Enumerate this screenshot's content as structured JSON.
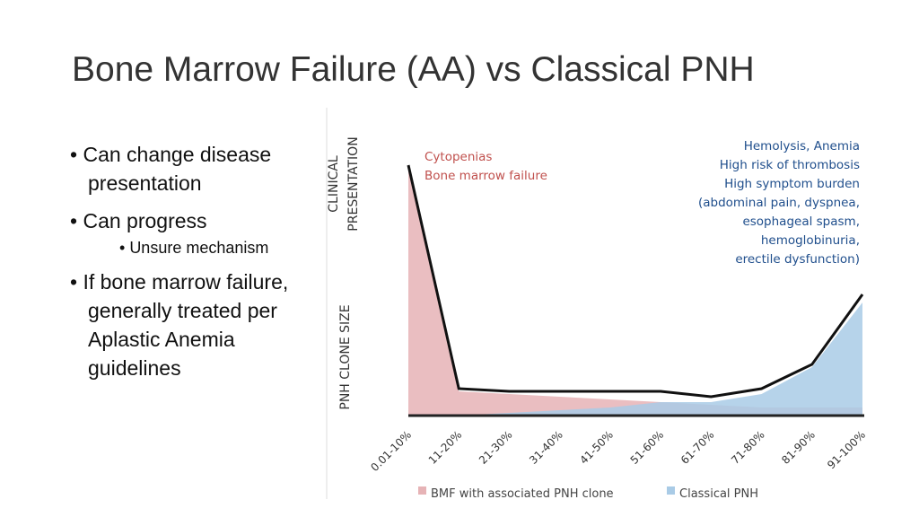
{
  "title": "Bone Marrow Failure (AA) vs Classical PNH",
  "bullets": [
    {
      "text": "Can change disease presentation",
      "level": 1
    },
    {
      "text": "Can progress",
      "level": 1
    },
    {
      "text": "Unsure mechanism",
      "level": 2
    },
    {
      "text": "If bone marrow failure, generally treated per Aplastic Anemia guidelines",
      "level": 1
    }
  ],
  "chart_data": {
    "type": "area",
    "y_label_top": [
      "CLINICAL",
      "PRESENTATION"
    ],
    "y_label_bottom": "PNH CLONE SIZE",
    "categories": [
      "0.01-10%",
      "11-20%",
      "21-30%",
      "31-40%",
      "41-50%",
      "51-60%",
      "61-70%",
      "71-80%",
      "81-90%",
      "91-100%"
    ],
    "ylim": [
      0,
      100
    ],
    "series": [
      {
        "name": "BMF with associated PNH clone",
        "color": "#e6b3b6",
        "values": [
          93,
          9,
          8,
          7,
          6,
          5,
          4,
          3,
          3,
          3
        ]
      },
      {
        "name": "Classical PNH",
        "color": "#a9cbe6",
        "values": [
          0,
          0,
          1,
          2,
          3,
          5,
          5,
          8,
          18,
          42
        ]
      }
    ],
    "outline": {
      "color": "#111111",
      "values": [
        93,
        10,
        9,
        9,
        9,
        9,
        7,
        10,
        19,
        45
      ]
    },
    "annotations": [
      {
        "color": "#c0504d",
        "lines": [
          "Cytopenias",
          "Bone marrow failure"
        ]
      },
      {
        "color": "#1f4e8c",
        "lines": [
          "Hemolysis, Anemia",
          "High risk of thrombosis",
          "High symptom burden",
          "(abdominal pain, dyspnea,",
          "esophageal spasm,",
          "hemoglobinuria,",
          "erectile dysfunction)"
        ]
      }
    ]
  }
}
